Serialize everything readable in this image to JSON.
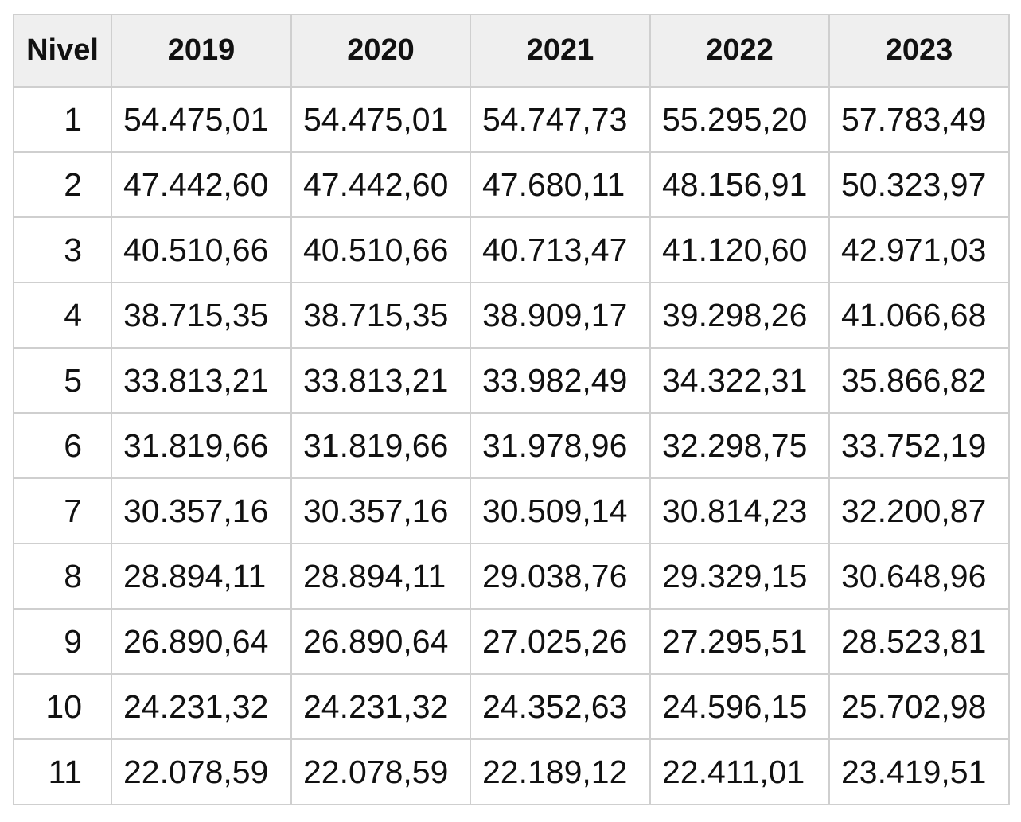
{
  "table": {
    "header": [
      "Nivel",
      "2019",
      "2020",
      "2021",
      "2022",
      "2023"
    ],
    "rows": [
      [
        "1",
        "54.475,01",
        "54.475,01",
        "54.747,73",
        "55.295,20",
        "57.783,49"
      ],
      [
        "2",
        "47.442,60",
        "47.442,60",
        "47.680,11",
        "48.156,91",
        "50.323,97"
      ],
      [
        "3",
        "40.510,66",
        "40.510,66",
        "40.713,47",
        "41.120,60",
        "42.971,03"
      ],
      [
        "4",
        "38.715,35",
        "38.715,35",
        "38.909,17",
        "39.298,26",
        "41.066,68"
      ],
      [
        "5",
        "33.813,21",
        "33.813,21",
        "33.982,49",
        "34.322,31",
        "35.866,82"
      ],
      [
        "6",
        "31.819,66",
        "31.819,66",
        "31.978,96",
        "32.298,75",
        "33.752,19"
      ],
      [
        "7",
        "30.357,16",
        "30.357,16",
        "30.509,14",
        "30.814,23",
        "32.200,87"
      ],
      [
        "8",
        "28.894,11",
        "28.894,11",
        "29.038,76",
        "29.329,15",
        "30.648,96"
      ],
      [
        "9",
        "26.890,64",
        "26.890,64",
        "27.025,26",
        "27.295,51",
        "28.523,81"
      ],
      [
        "10",
        "24.231,32",
        "24.231,32",
        "24.352,63",
        "24.596,15",
        "25.702,98"
      ],
      [
        "11",
        "22.078,59",
        "22.078,59",
        "22.189,12",
        "22.411,01",
        "23.419,51"
      ]
    ]
  }
}
